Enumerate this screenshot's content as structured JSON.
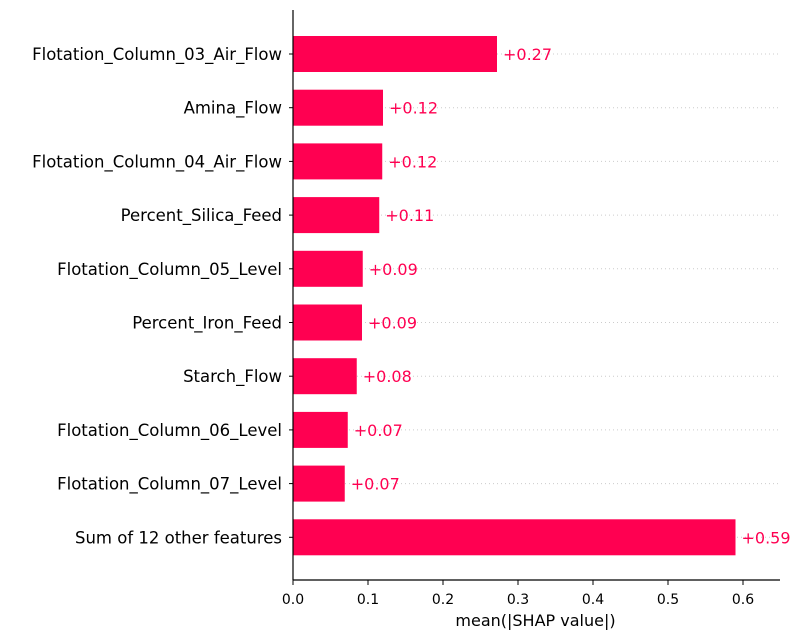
{
  "chart_data": {
    "type": "bar",
    "orientation": "horizontal",
    "categories": [
      "Flotation_Column_03_Air_Flow",
      "Amina_Flow",
      "Flotation_Column_04_Air_Flow",
      "Percent_Silica_Feed",
      "Flotation_Column_05_Level",
      "Percent_Iron_Feed",
      "Starch_Flow",
      "Flotation_Column_06_Level",
      "Flotation_Column_07_Level",
      "Sum of 12 other features"
    ],
    "values": [
      0.272,
      0.12,
      0.119,
      0.115,
      0.093,
      0.092,
      0.085,
      0.073,
      0.069,
      0.59
    ],
    "value_labels": [
      "+0.27",
      "+0.12",
      "+0.12",
      "+0.11",
      "+0.09",
      "+0.09",
      "+0.08",
      "+0.07",
      "+0.07",
      "+0.59"
    ],
    "xlabel": "mean(|SHAP value|)",
    "ylabel": "",
    "title": "",
    "xlim": [
      0,
      0.65
    ],
    "xticks": [
      0.0,
      0.1,
      0.2,
      0.3,
      0.4,
      0.5,
      0.6
    ],
    "xtick_labels": [
      "0.0",
      "0.1",
      "0.2",
      "0.3",
      "0.4",
      "0.5",
      "0.6"
    ],
    "grid": "horizontal dotted guide lines per row",
    "legend": "none",
    "colors": {
      "bar": "#ff0051",
      "value_label": "#ff0051",
      "axis": "#000000",
      "gridline": "#cccccc"
    }
  }
}
